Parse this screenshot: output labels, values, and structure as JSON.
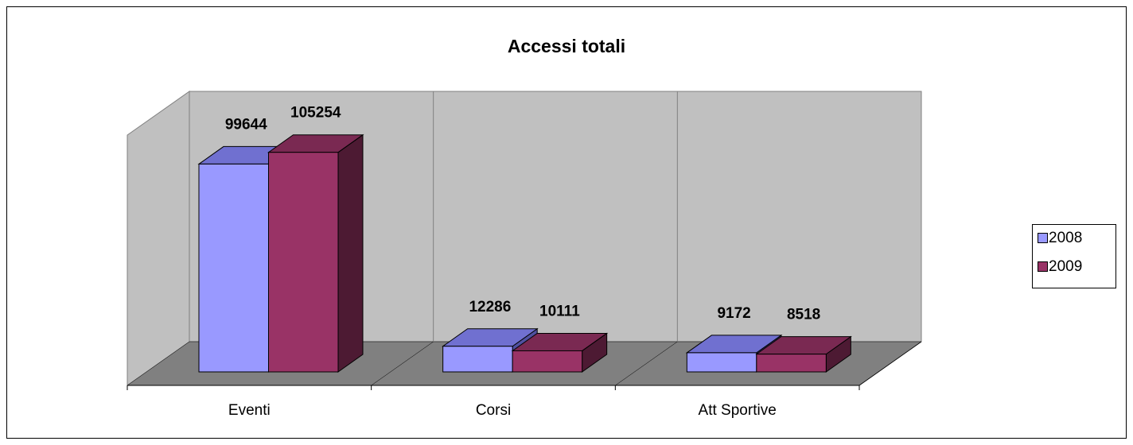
{
  "chart_data": {
    "type": "bar3d",
    "title": "Accessi totali",
    "categories": [
      "Eventi",
      "Corsi",
      "Att Sportive"
    ],
    "series": [
      {
        "name": "2008",
        "color": "#9999ff",
        "values": [
          99644,
          12286,
          9172
        ]
      },
      {
        "name": "2009",
        "color": "#993366",
        "values": [
          105254,
          10111,
          8518
        ]
      }
    ],
    "ylim": [
      0,
      120000
    ],
    "legend": "right"
  }
}
